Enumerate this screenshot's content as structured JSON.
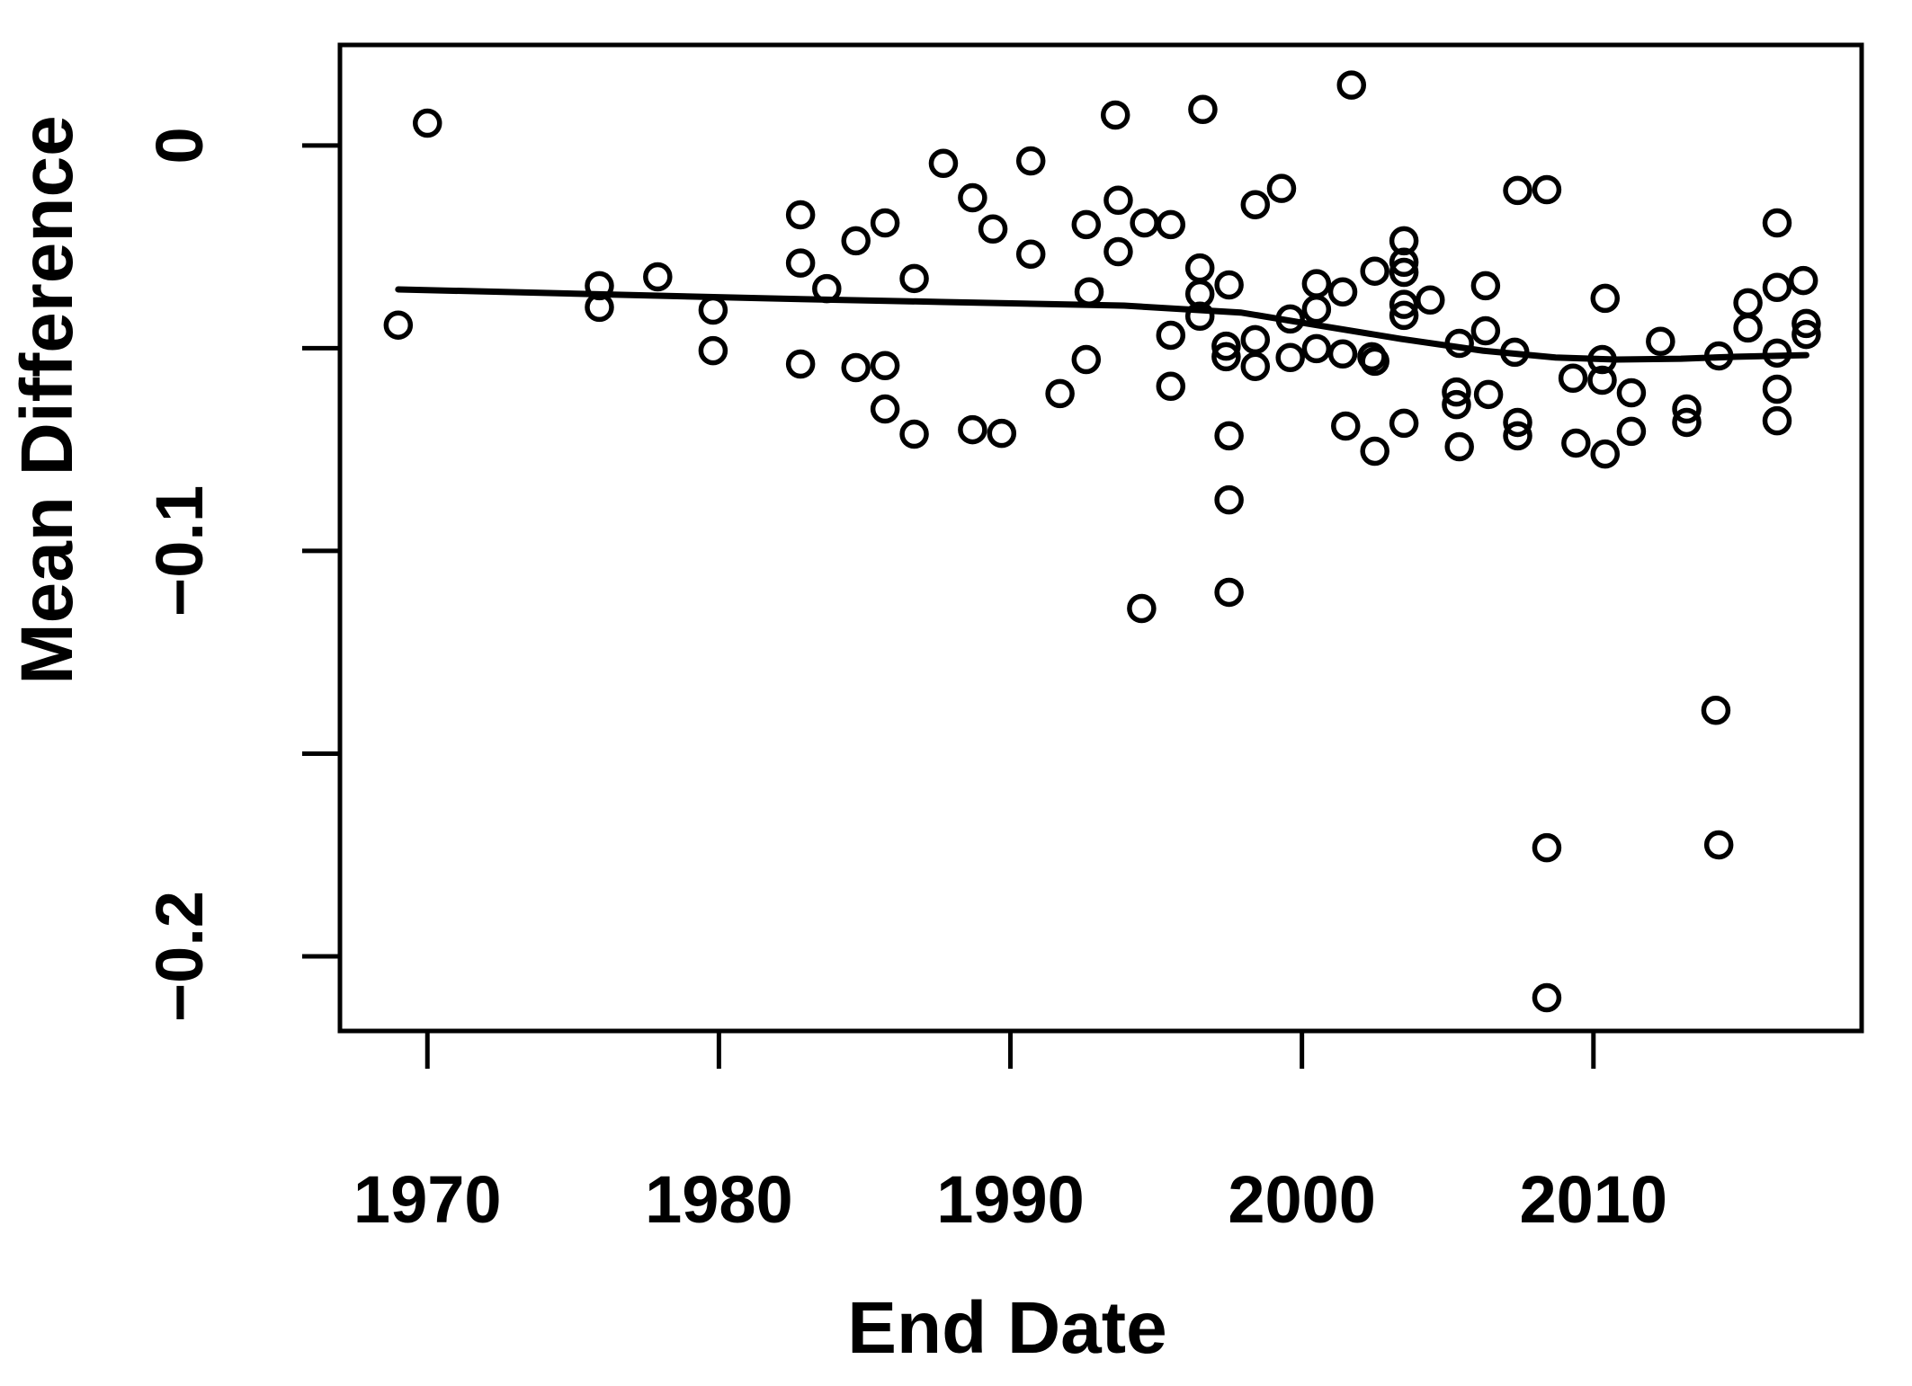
{
  "figure": {
    "background_color": "#ffffff",
    "stroke_color": "#000000"
  },
  "chart_data": {
    "type": "scatter",
    "title": "",
    "xlabel": "End Date",
    "ylabel": "Mean Difference",
    "xlim": [
      1967.0,
      2019.2
    ],
    "ylim": [
      -0.2184,
      0.0248
    ],
    "grid": false,
    "legend_position": "none",
    "marker": "open-circle",
    "x_ticks": {
      "values": [
        1970,
        1980,
        1990,
        2000,
        2010
      ],
      "labels": [
        "1970",
        "1980",
        "1990",
        "2000",
        "2010"
      ]
    },
    "y_ticks": {
      "values": [
        0,
        -0.05,
        -0.1,
        -0.15,
        -0.2
      ],
      "labels": [
        "0",
        "",
        "−0.1",
        "",
        "−0.2"
      ]
    },
    "points": [
      [
        1970.0,
        0.0055
      ],
      [
        1969.0,
        -0.0443
      ],
      [
        1975.9,
        -0.0346
      ],
      [
        1975.9,
        -0.0399
      ],
      [
        1977.9,
        -0.0324
      ],
      [
        1979.8,
        -0.0406
      ],
      [
        1979.8,
        -0.0506
      ],
      [
        1982.8,
        -0.0171
      ],
      [
        1982.8,
        -0.029
      ],
      [
        1982.8,
        -0.0539
      ],
      [
        1983.7,
        -0.0353
      ],
      [
        1984.7,
        -0.0235
      ],
      [
        1985.7,
        -0.0191
      ],
      [
        1984.7,
        -0.0548
      ],
      [
        1985.7,
        -0.0543
      ],
      [
        1985.7,
        -0.065
      ],
      [
        1986.7,
        -0.0328
      ],
      [
        1986.7,
        -0.0712
      ],
      [
        1987.7,
        -0.0044
      ],
      [
        1988.7,
        -0.0129
      ],
      [
        1988.7,
        -0.0701
      ],
      [
        1989.4,
        -0.0206
      ],
      [
        1989.7,
        -0.071
      ],
      [
        1990.7,
        -0.0038
      ],
      [
        1990.7,
        -0.0268
      ],
      [
        1991.7,
        -0.0612
      ],
      [
        1992.6,
        -0.0195
      ],
      [
        1992.7,
        -0.0361
      ],
      [
        1992.6,
        -0.0528
      ],
      [
        1993.6,
        0.0075
      ],
      [
        1993.7,
        -0.0135
      ],
      [
        1993.7,
        -0.0262
      ],
      [
        1994.5,
        -0.1142
      ],
      [
        1994.6,
        -0.0191
      ],
      [
        1995.5,
        -0.0195
      ],
      [
        1995.5,
        -0.0468
      ],
      [
        1995.5,
        -0.0594
      ],
      [
        1996.5,
        -0.0302
      ],
      [
        1996.5,
        -0.0366
      ],
      [
        1996.5,
        -0.0421
      ],
      [
        1996.6,
        0.0089
      ],
      [
        1997.4,
        -0.0495
      ],
      [
        1997.4,
        -0.0521
      ],
      [
        1997.5,
        -0.0344
      ],
      [
        1997.5,
        -0.0716
      ],
      [
        1997.5,
        -0.0874
      ],
      [
        1997.5,
        -0.1102
      ],
      [
        1998.4,
        -0.0146
      ],
      [
        1998.4,
        -0.0479
      ],
      [
        1998.4,
        -0.0545
      ],
      [
        1999.3,
        -0.0106
      ],
      [
        1999.6,
        -0.0428
      ],
      [
        1999.6,
        -0.0523
      ],
      [
        2000.5,
        -0.0341
      ],
      [
        2000.5,
        -0.0404
      ],
      [
        2000.5,
        -0.0501
      ],
      [
        2001.4,
        -0.0361
      ],
      [
        2001.4,
        -0.0514
      ],
      [
        2001.7,
        0.0149
      ],
      [
        2001.5,
        -0.0692
      ],
      [
        2002.4,
        -0.0521
      ],
      [
        2002.5,
        -0.0532
      ],
      [
        2002.5,
        -0.031
      ],
      [
        2002.5,
        -0.0754
      ],
      [
        2003.5,
        -0.0235
      ],
      [
        2003.5,
        -0.0288
      ],
      [
        2003.5,
        -0.0313
      ],
      [
        2003.5,
        -0.0392
      ],
      [
        2003.5,
        -0.0419
      ],
      [
        2003.5,
        -0.0685
      ],
      [
        2004.4,
        -0.0381
      ],
      [
        2005.4,
        -0.0488
      ],
      [
        2006.3,
        -0.0346
      ],
      [
        2006.3,
        -0.0457
      ],
      [
        2005.3,
        -0.0608
      ],
      [
        2005.3,
        -0.0639
      ],
      [
        2006.4,
        -0.0614
      ],
      [
        2005.4,
        -0.0743
      ],
      [
        2007.3,
        -0.051
      ],
      [
        2007.4,
        -0.0111
      ],
      [
        2007.4,
        -0.0683
      ],
      [
        2007.4,
        -0.0716
      ],
      [
        2008.4,
        -0.0109
      ],
      [
        2008.4,
        -0.1732
      ],
      [
        2008.4,
        -0.2102
      ],
      [
        2009.3,
        -0.0574
      ],
      [
        2009.4,
        -0.0734
      ],
      [
        2010.3,
        -0.0528
      ],
      [
        2010.3,
        -0.0579
      ],
      [
        2010.4,
        -0.0377
      ],
      [
        2010.4,
        -0.0761
      ],
      [
        2011.3,
        -0.061
      ],
      [
        2011.3,
        -0.0705
      ],
      [
        2012.3,
        -0.0483
      ],
      [
        2013.2,
        -0.065
      ],
      [
        2013.2,
        -0.0683
      ],
      [
        2014.3,
        -0.0519
      ],
      [
        2014.2,
        -0.1393
      ],
      [
        2014.3,
        -0.1725
      ],
      [
        2015.3,
        -0.0388
      ],
      [
        2015.3,
        -0.045
      ],
      [
        2016.3,
        -0.0191
      ],
      [
        2016.3,
        -0.035
      ],
      [
        2016.3,
        -0.0512
      ],
      [
        2016.3,
        -0.0601
      ],
      [
        2016.3,
        -0.0679
      ],
      [
        2017.2,
        -0.0333
      ],
      [
        2017.3,
        -0.0439
      ],
      [
        2017.3,
        -0.0466
      ]
    ],
    "smooth_line": [
      [
        1969.0,
        -0.0355
      ],
      [
        1975.4,
        -0.0366
      ],
      [
        1981.6,
        -0.0377
      ],
      [
        1987.7,
        -0.0386
      ],
      [
        1993.9,
        -0.0395
      ],
      [
        1997.9,
        -0.0412
      ],
      [
        2000.5,
        -0.0443
      ],
      [
        2003.4,
        -0.0477
      ],
      [
        2006.2,
        -0.0506
      ],
      [
        2008.7,
        -0.0523
      ],
      [
        2010.8,
        -0.0528
      ],
      [
        2013.0,
        -0.0526
      ],
      [
        2014.9,
        -0.0521
      ],
      [
        2017.3,
        -0.0517
      ]
    ]
  }
}
